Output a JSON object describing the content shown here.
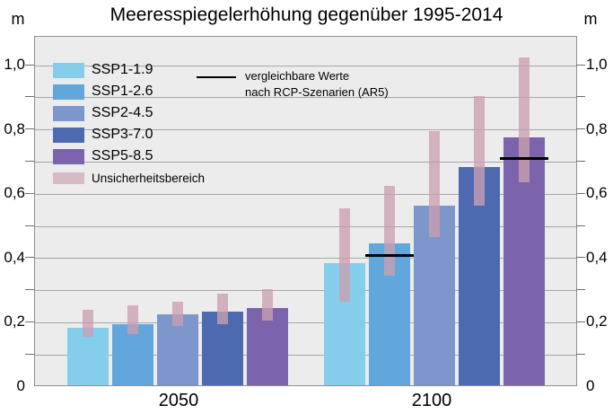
{
  "title": "Meeresspiegelerhöhung gegenüber 1995-2014",
  "y_axis": {
    "unit_left": "m",
    "unit_right": "m",
    "labeled_ticks": [
      {
        "value": 0,
        "label": "0"
      },
      {
        "value": 0.2,
        "label": "0,2"
      },
      {
        "value": 0.4,
        "label": "0,4"
      },
      {
        "value": 0.6,
        "label": "0,6"
      },
      {
        "value": 0.8,
        "label": "0,8"
      },
      {
        "value": 1.0,
        "label": "1,0"
      }
    ]
  },
  "legend": {
    "entries": [
      {
        "label": "SSP1-1.9",
        "color": "#84CEEC"
      },
      {
        "label": "SSP1-2.6",
        "color": "#61A7DB"
      },
      {
        "label": "SSP2-4.5",
        "color": "#7D96CC"
      },
      {
        "label": "SSP3-7.0",
        "color": "#4D69B0"
      },
      {
        "label": "SSP5-8.5",
        "color": "#7C64AC"
      }
    ],
    "ar5_note_line1": "vergleichbare Werte",
    "ar5_note_line2": "nach RCP-Szenarien (AR5)",
    "uncertainty_label": "Unsicherheitsbereich",
    "uncertainty_swatch_color": "#D6BBC3"
  },
  "chart_data": {
    "type": "bar",
    "title": "Meeresspiegelerhöhung gegenüber 1995-2014",
    "ylabel": "m",
    "ylim": [
      0,
      1.09
    ],
    "grid": true,
    "grid_step": 0.1,
    "label_step": 0.2,
    "legend_position": "top-left-inside",
    "categories": [
      "2050",
      "2100"
    ],
    "series": [
      {
        "name": "SSP1-1.9",
        "color": "#84CEEC",
        "values": [
          0.18,
          0.38
        ],
        "uncertainty": [
          [
            0.15,
            0.235
          ],
          [
            0.26,
            0.55
          ]
        ],
        "ar5_values": [
          null,
          null
        ]
      },
      {
        "name": "SSP1-2.6",
        "color": "#61A7DB",
        "values": [
          0.19,
          0.44
        ],
        "uncertainty": [
          [
            0.16,
            0.25
          ],
          [
            0.34,
            0.62
          ]
        ],
        "ar5_values": [
          null,
          0.41
        ]
      },
      {
        "name": "SSP2-4.5",
        "color": "#7D96CC",
        "values": [
          0.22,
          0.56
        ],
        "uncertainty": [
          [
            0.185,
            0.26
          ],
          [
            0.46,
            0.79
          ]
        ],
        "ar5_values": [
          null,
          null
        ]
      },
      {
        "name": "SSP3-7.0",
        "color": "#4D69B0",
        "values": [
          0.23,
          0.68
        ],
        "uncertainty": [
          [
            0.19,
            0.285
          ],
          [
            0.56,
            0.9
          ]
        ],
        "ar5_values": [
          null,
          null
        ]
      },
      {
        "name": "SSP5-8.5",
        "color": "#7C64AC",
        "values": [
          0.24,
          0.77
        ],
        "uncertainty": [
          [
            0.2,
            0.3
          ],
          [
            0.63,
            1.02
          ]
        ],
        "ar5_values": [
          null,
          0.71
        ]
      }
    ],
    "uncertainty_color": "rgba(203,159,176,0.78)",
    "ar5_line_color": "#000000"
  }
}
